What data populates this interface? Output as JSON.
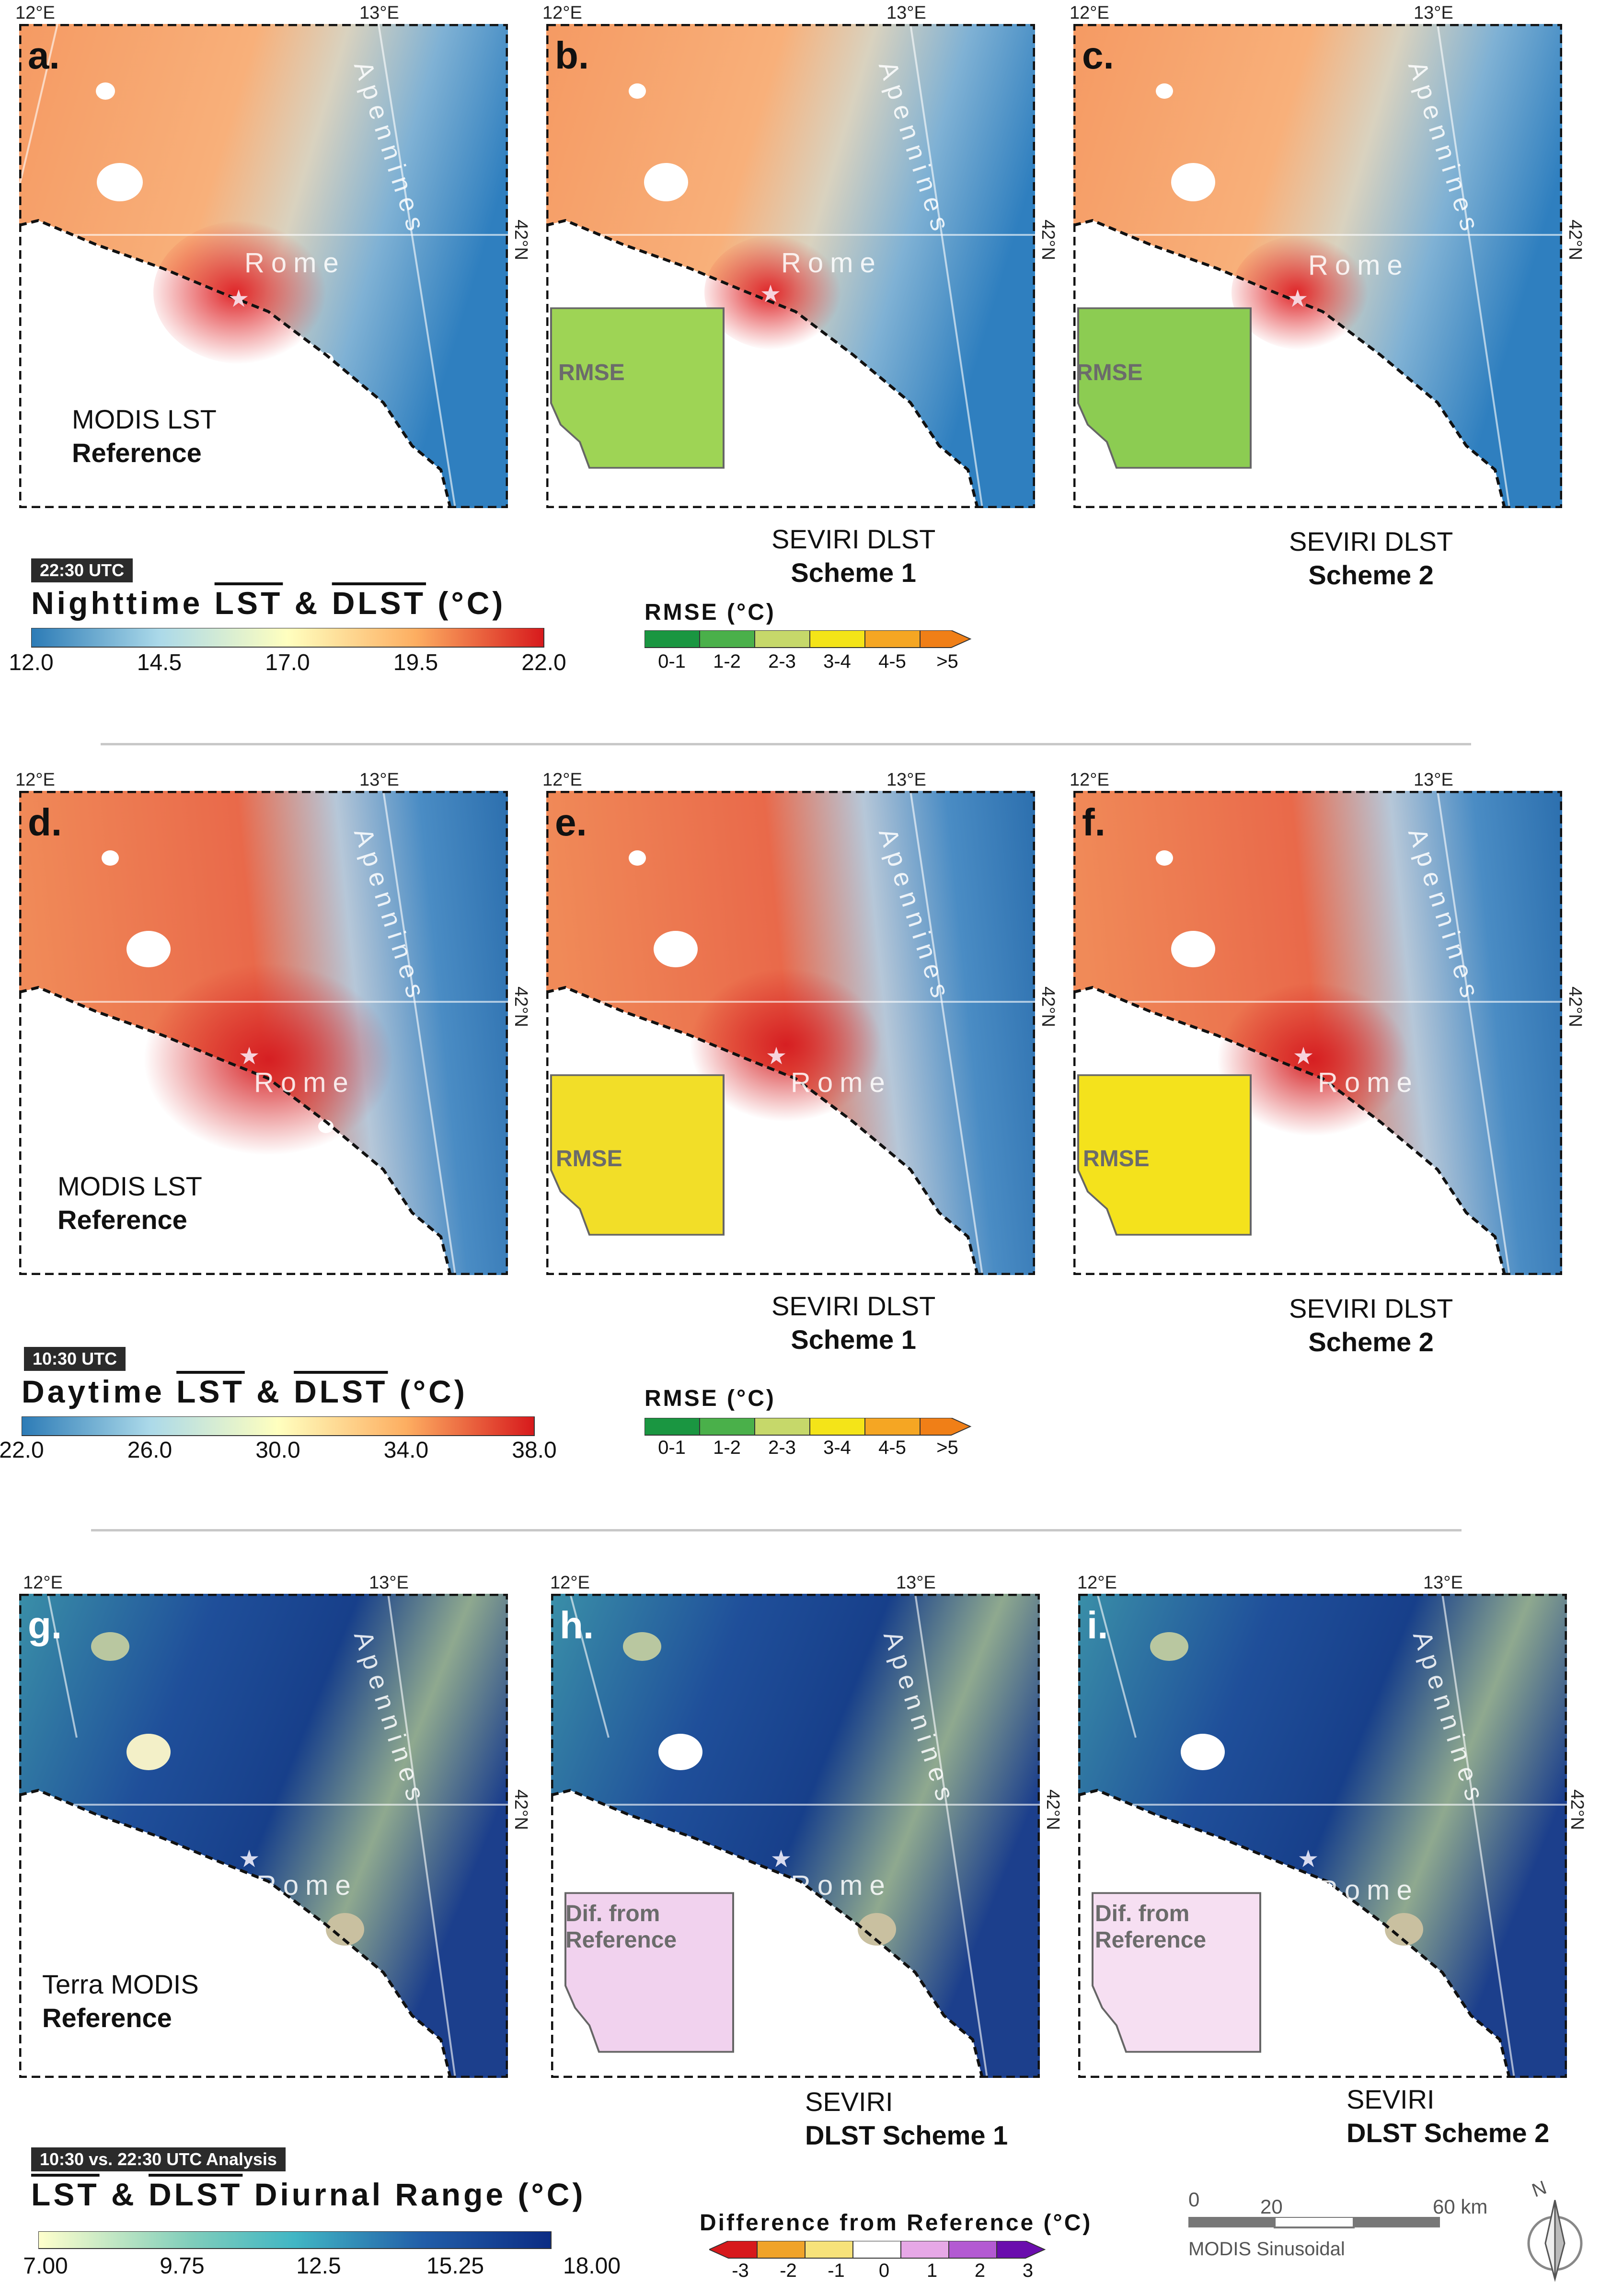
{
  "coords": {
    "lon1": "12°E",
    "lon2": "13°E",
    "lat": "42°N"
  },
  "places": {
    "city": "Rome",
    "range": "Apennines"
  },
  "rows": [
    {
      "panels": [
        {
          "letter": "a.",
          "title1": "MODIS LST",
          "title2": "Reference"
        },
        {
          "letter": "b.",
          "title1": "SEVIRI DLST",
          "title2": "Scheme 1",
          "inset": "RMSE"
        },
        {
          "letter": "c.",
          "title1": "SEVIRI DLST",
          "title2": "Scheme 2",
          "inset": "RMSE"
        }
      ],
      "time": "22:30 UTC",
      "legend_prefix": "Nighttime",
      "legend_lst": "LST",
      "legend_amp": "&",
      "legend_dlst": "DLST",
      "legend_unit": "(°C)",
      "ticks": [
        "12.0",
        "14.5",
        "17.0",
        "19.5",
        "22.0"
      ],
      "rmse_title": "RMSE (°C)",
      "rmse_ticks": [
        "0-1",
        "1-2",
        "2-3",
        "3-4",
        "4-5",
        ">5"
      ]
    },
    {
      "panels": [
        {
          "letter": "d.",
          "title1": "MODIS LST",
          "title2": "Reference"
        },
        {
          "letter": "e.",
          "title1": "SEVIRI DLST",
          "title2": "Scheme 1",
          "inset": "RMSE"
        },
        {
          "letter": "f.",
          "title1": "SEVIRI DLST",
          "title2": "Scheme 2",
          "inset": "RMSE"
        }
      ],
      "time": "10:30 UTC",
      "legend_prefix": "Daytime",
      "legend_lst": "LST",
      "legend_amp": "&",
      "legend_dlst": "DLST",
      "legend_unit": "(°C)",
      "ticks": [
        "22.0",
        "26.0",
        "30.0",
        "34.0",
        "38.0"
      ],
      "rmse_title": "RMSE (°C)",
      "rmse_ticks": [
        "0-1",
        "1-2",
        "2-3",
        "3-4",
        "4-5",
        ">5"
      ]
    },
    {
      "panels": [
        {
          "letter": "g.",
          "title1": "Terra MODIS",
          "title2": "Reference"
        },
        {
          "letter": "h.",
          "title1": "SEVIRI",
          "title2": "DLST Scheme 1",
          "inset1": "Dif. from",
          "inset2": "Reference"
        },
        {
          "letter": "i.",
          "title1": "SEVIRI",
          "title2": "DLST Scheme 2",
          "inset1": "Dif. from",
          "inset2": "Reference"
        }
      ],
      "time": "10:30 vs. 22:30 UTC Analysis",
      "legend_lst": "LST",
      "legend_amp": "&",
      "legend_dlst": "DLST",
      "legend_suffix": "Diurnal Range",
      "legend_unit": "(°C)",
      "ticks": [
        "7.00",
        "9.75",
        "12.5",
        "15.25",
        "18.00"
      ],
      "diff_title": "Difference from Reference (°C)",
      "diff_ticks": [
        "-3",
        "-2",
        "-1",
        "0",
        "1",
        "2",
        "3"
      ]
    }
  ],
  "scalebar": {
    "t0": "0",
    "t1": "20",
    "t2": "60 km",
    "label": "MODIS Sinusoidal"
  },
  "north": "N",
  "colors": {
    "temp": [
      "#2c7bb6",
      "#abd9e9",
      "#ffffbf",
      "#fdae61",
      "#d7191c"
    ],
    "rmse": [
      "#1a9641",
      "#4ab04a",
      "#a6d96a",
      "#f4e418",
      "#f5a623",
      "#f07f17"
    ],
    "diurnal": [
      "#ffffcc",
      "#41b6c4",
      "#1d91c0",
      "#225ea8",
      "#0c2c84"
    ],
    "diff": [
      "#d7191c",
      "#f0a32a",
      "#f7e27a",
      "#ffffff",
      "#e6a8e6",
      "#b35ad2",
      "#6a0dad"
    ]
  }
}
